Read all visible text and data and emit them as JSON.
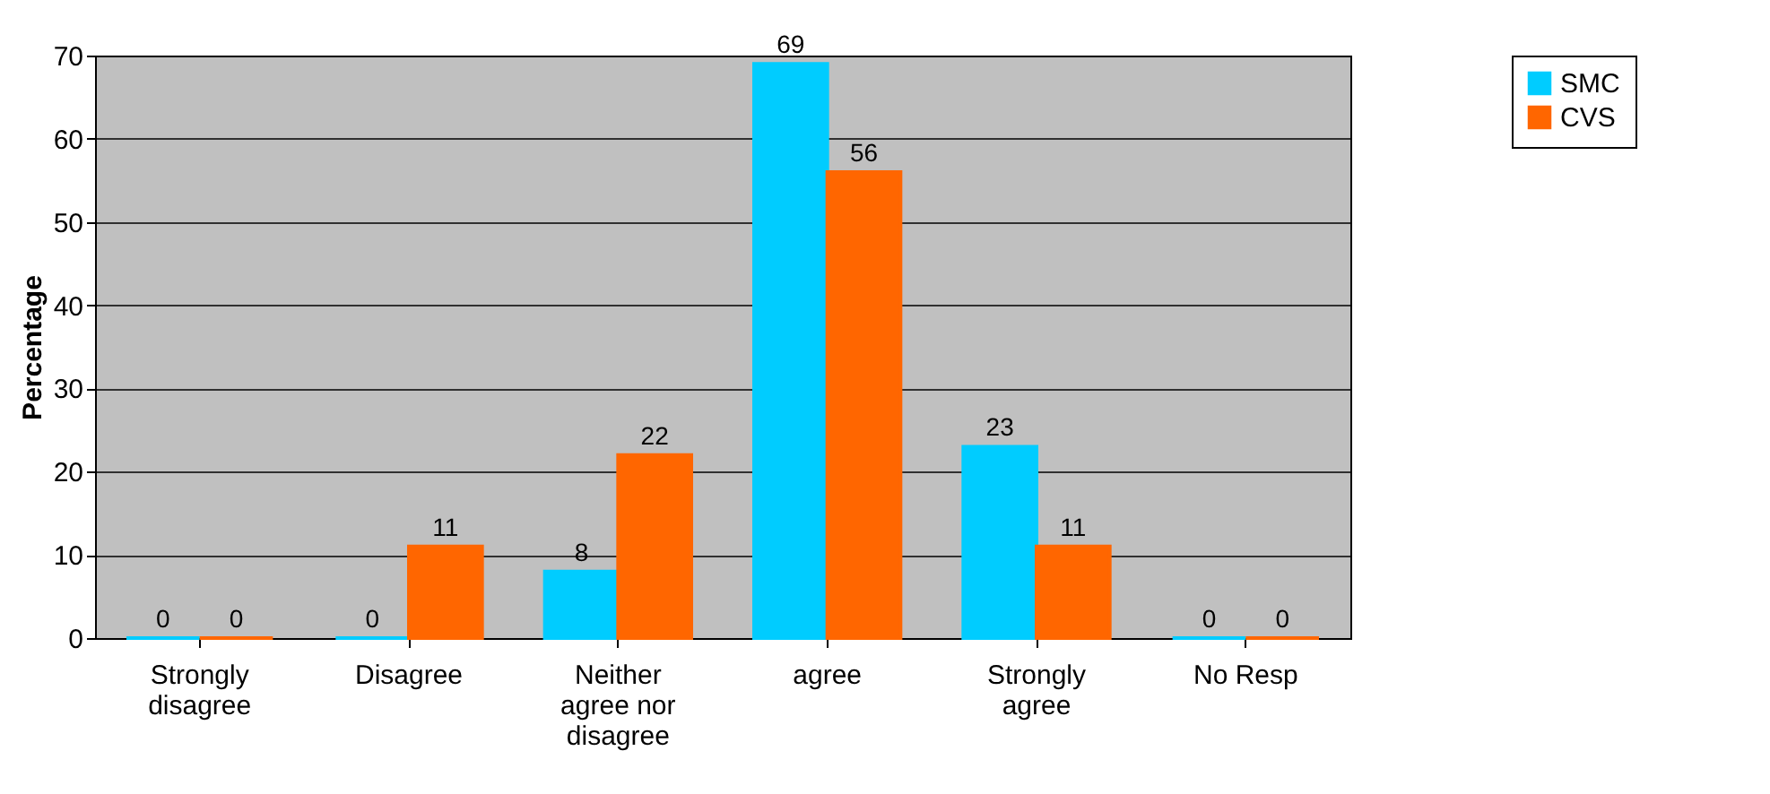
{
  "chart_data": {
    "type": "bar",
    "ylabel": "Percentage",
    "categories": [
      "Strongly disagree",
      "Disagree",
      "Neither agree nor disagree",
      "agree",
      "Strongly agree",
      "No Resp"
    ],
    "series": [
      {
        "name": "SMC",
        "color": "#00ccff",
        "values": [
          0,
          0,
          8,
          69,
          23,
          0
        ]
      },
      {
        "name": "CVS",
        "color": "#ff6600",
        "values": [
          0,
          11,
          22,
          56,
          11,
          0
        ]
      }
    ],
    "ylim": [
      0,
      70
    ],
    "yticks": [
      0,
      10,
      20,
      30,
      40,
      50,
      60,
      70
    ],
    "grid": "y",
    "legend": "right",
    "data_labels": true
  }
}
